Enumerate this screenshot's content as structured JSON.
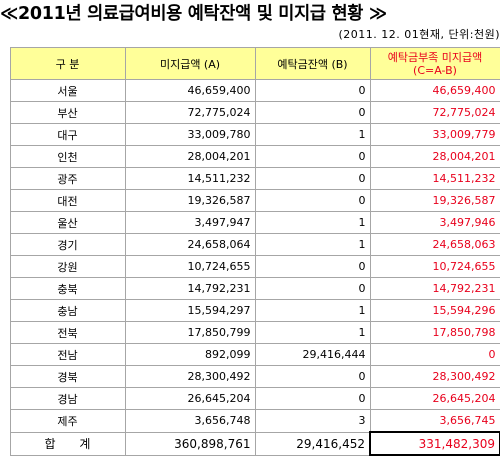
{
  "title": "≪2011년 의료급여비용 예탁잔액 및 미지급 현황 ≫",
  "subtitle": "(2011. 12. 01현재, 단위:천원)",
  "headers": {
    "col1": "구  분",
    "col2": "미지급액 (A)",
    "col3": "예탁금잔액 (B)",
    "col4_line1": "예탁금부족 미지급액",
    "col4_line2": "(C=A-B)"
  },
  "rows": [
    {
      "region": "서울",
      "a": "46,659,400",
      "b": "0",
      "c": "46,659,400"
    },
    {
      "region": "부산",
      "a": "72,775,024",
      "b": "0",
      "c": "72,775,024"
    },
    {
      "region": "대구",
      "a": "33,009,780",
      "b": "1",
      "c": "33,009,779"
    },
    {
      "region": "인천",
      "a": "28,004,201",
      "b": "0",
      "c": "28,004,201"
    },
    {
      "region": "광주",
      "a": "14,511,232",
      "b": "0",
      "c": "14,511,232"
    },
    {
      "region": "대전",
      "a": "19,326,587",
      "b": "0",
      "c": "19,326,587"
    },
    {
      "region": "울산",
      "a": "3,497,947",
      "b": "1",
      "c": "3,497,946"
    },
    {
      "region": "경기",
      "a": "24,658,064",
      "b": "1",
      "c": "24,658,063"
    },
    {
      "region": "강원",
      "a": "10,724,655",
      "b": "0",
      "c": "10,724,655"
    },
    {
      "region": "충북",
      "a": "14,792,231",
      "b": "0",
      "c": "14,792,231"
    },
    {
      "region": "충남",
      "a": "15,594,297",
      "b": "1",
      "c": "15,594,296"
    },
    {
      "region": "전북",
      "a": "17,850,799",
      "b": "1",
      "c": "17,850,798"
    },
    {
      "region": "전남",
      "a": "892,099",
      "b": "29,416,444",
      "c": "0"
    },
    {
      "region": "경북",
      "a": "28,300,492",
      "b": "0",
      "c": "28,300,492"
    },
    {
      "region": "경남",
      "a": "26,645,204",
      "b": "0",
      "c": "26,645,204"
    },
    {
      "region": "제주",
      "a": "3,656,748",
      "b": "3",
      "c": "3,656,745"
    }
  ],
  "total": {
    "label": "합 계",
    "a": "360,898,761",
    "b": "29,416,452",
    "c": "331,482,309"
  },
  "colors": {
    "header_bg": "#ffff99",
    "red_text": "#e8001c",
    "grid": "#a6a6a6"
  }
}
